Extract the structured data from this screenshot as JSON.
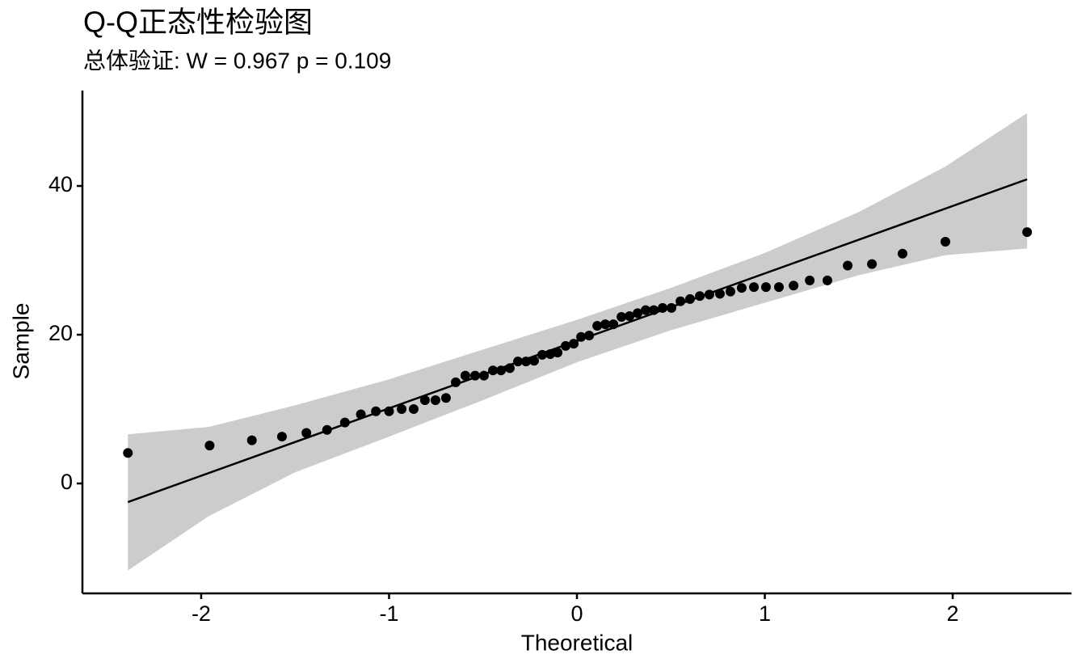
{
  "chart_data": {
    "type": "scatter",
    "title": "Q-Q正态性检验图",
    "subtitle": "总体验证: W = 0.967 p = 0.109",
    "x_label": "Theoretical",
    "y_label": "Sample",
    "x": [
      -2.39,
      -1.955,
      -1.73,
      -1.57,
      -1.44,
      -1.33,
      -1.235,
      -1.15,
      -1.07,
      -1.0,
      -0.933,
      -0.869,
      -0.809,
      -0.753,
      -0.697,
      -0.645,
      -0.594,
      -0.542,
      -0.495,
      -0.447,
      -0.404,
      -0.357,
      -0.314,
      -0.271,
      -0.228,
      -0.185,
      -0.142,
      -0.103,
      -0.06,
      -0.017,
      0.022,
      0.065,
      0.108,
      0.151,
      0.194,
      0.237,
      0.28,
      0.323,
      0.366,
      0.409,
      0.456,
      0.503,
      0.551,
      0.602,
      0.654,
      0.705,
      0.761,
      0.817,
      0.877,
      0.942,
      1.006,
      1.075,
      1.153,
      1.239,
      1.333,
      1.441,
      1.57,
      1.733,
      1.961,
      2.396
    ],
    "values": [
      4.1,
      5.1,
      5.8,
      6.3,
      6.8,
      7.2,
      8.2,
      9.3,
      9.7,
      9.7,
      10.0,
      10.0,
      11.2,
      11.2,
      11.5,
      13.6,
      14.5,
      14.5,
      14.5,
      15.2,
      15.2,
      15.5,
      16.4,
      16.4,
      16.5,
      17.3,
      17.4,
      17.6,
      18.5,
      18.8,
      19.7,
      19.9,
      21.2,
      21.4,
      21.4,
      22.4,
      22.5,
      22.9,
      23.3,
      23.3,
      23.6,
      23.6,
      24.5,
      24.8,
      25.2,
      25.4,
      25.5,
      25.8,
      26.3,
      26.4,
      26.4,
      26.4,
      26.6,
      27.3,
      27.3,
      29.3,
      29.5,
      30.9,
      32.5,
      33.8
    ],
    "color": "#000000",
    "reference_line": {
      "x": [
        -2.39,
        2.396
      ],
      "y": [
        -2.5,
        40.9
      ],
      "color": "#000000"
    },
    "confidence_band": {
      "x": [
        -2.39,
        -1.96,
        -1.5,
        -1,
        -0.5,
        0,
        0.5,
        1,
        1.5,
        1.96,
        2.396
      ],
      "upper": [
        6.6,
        7.6,
        10.5,
        14.0,
        18.0,
        22.0,
        26.3,
        31.0,
        36.5,
        42.6,
        49.8
      ],
      "lower": [
        -11.7,
        -4.4,
        1.5,
        6.3,
        11.2,
        16.3,
        20.6,
        24.3,
        28.0,
        30.7,
        31.6
      ],
      "color": "#cccccc"
    },
    "xlim": [
      -2.632,
      2.632
    ],
    "ylim": [
      -14.78,
      52.83
    ],
    "xticks": [
      -2,
      -1,
      0,
      1,
      2
    ],
    "yticks": [
      0,
      20,
      40
    ],
    "grid": false
  }
}
